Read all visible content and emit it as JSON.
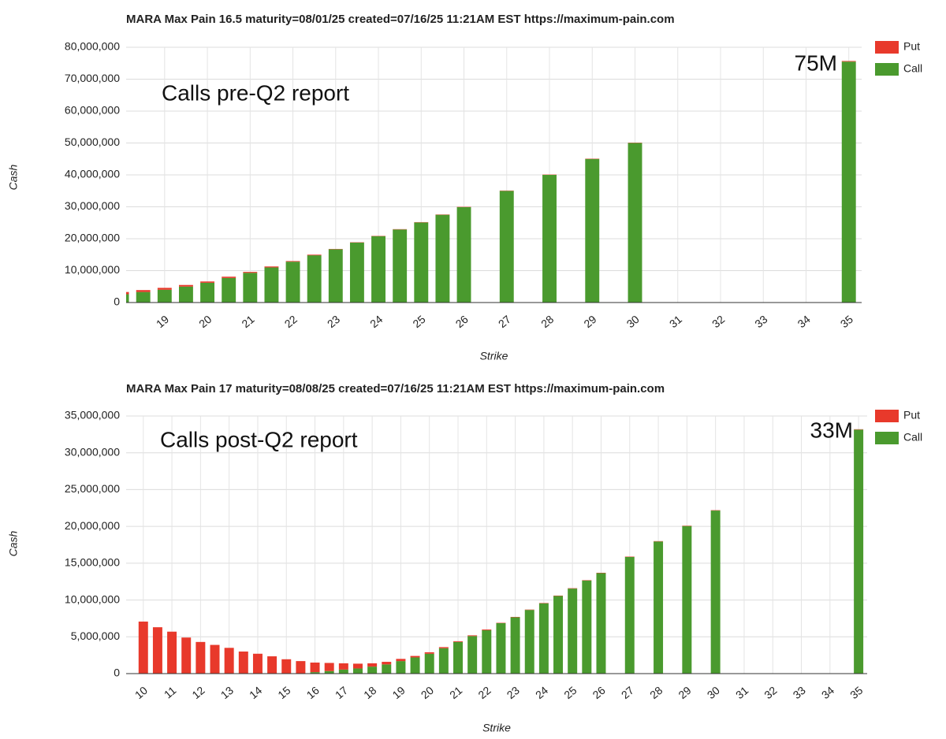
{
  "chart_data": [
    {
      "type": "bar",
      "stacked": true,
      "title": "MARA Max Pain 16.5 maturity=08/01/25 created=07/16/25 11:21AM EST https://maximum-pain.com",
      "x_label": "Strike",
      "y_label": "Cash",
      "annotations": [
        "Calls pre-Q2 report",
        "75M"
      ],
      "x": [
        18,
        18.5,
        19,
        19.5,
        20,
        20.5,
        21,
        21.5,
        22,
        22.5,
        23,
        23.5,
        24,
        24.5,
        25,
        25.5,
        26,
        27,
        28,
        29,
        30,
        35
      ],
      "series": [
        {
          "name": "Put",
          "color": "#e8392b",
          "values": [
            700000,
            600000,
            600000,
            500000,
            400000,
            400000,
            300000,
            300000,
            200000,
            200000,
            100000,
            100000,
            100000,
            100000,
            100000,
            100000,
            100000,
            100000,
            100000,
            100000,
            100000,
            200000
          ]
        },
        {
          "name": "Call",
          "color": "#4a9a2e",
          "values": [
            2600000,
            3300000,
            4000000,
            5000000,
            6200000,
            7700000,
            9300000,
            11000000,
            12800000,
            14800000,
            16700000,
            18800000,
            20800000,
            22900000,
            25100000,
            27500000,
            29900000,
            35000000,
            40000000,
            45000000,
            50000000,
            75500000
          ]
        }
      ],
      "xlim": [
        18.1,
        35.3
      ],
      "xticks": [
        19,
        20,
        21,
        22,
        23,
        24,
        25,
        26,
        27,
        28,
        29,
        30,
        31,
        32,
        33,
        34,
        35
      ],
      "ylim": [
        0,
        80000000
      ],
      "yticks": [
        0,
        {
          "value": 10000000,
          "label": "10,000,000"
        },
        {
          "value": 20000000,
          "label": "20,000,000"
        },
        {
          "value": 30000000,
          "label": "30,000,000"
        },
        {
          "value": 40000000,
          "label": "40,000,000"
        },
        {
          "value": 50000000,
          "label": "50,000,000"
        },
        {
          "value": 60000000,
          "label": "60,000,000"
        },
        {
          "value": 70000000,
          "label": "70,000,000"
        },
        {
          "value": 80000000,
          "label": "80,000,000"
        }
      ],
      "grid": true,
      "legend": "right"
    },
    {
      "type": "bar",
      "stacked": true,
      "title": "MARA Max Pain 17 maturity=08/08/25 created=07/16/25 11:21AM EST https://maximum-pain.com",
      "x_label": "Strike",
      "y_label": "Cash",
      "annotations": [
        "Calls post-Q2 report",
        "33M"
      ],
      "x": [
        10,
        10.5,
        11,
        11.5,
        12,
        12.5,
        13,
        13.5,
        14,
        14.5,
        15,
        15.5,
        16,
        16.5,
        17,
        17.5,
        18,
        18.5,
        19,
        19.5,
        20,
        20.5,
        21,
        21.5,
        22,
        22.5,
        23,
        23.5,
        24,
        24.5,
        25,
        25.5,
        26,
        27,
        28,
        29,
        30,
        35
      ],
      "series": [
        {
          "name": "Put",
          "color": "#e8392b",
          "values": [
            7070000,
            6300000,
            5700000,
            4900000,
            4300000,
            3900000,
            3500000,
            3000000,
            2700000,
            2350000,
            1950000,
            1650000,
            1300000,
            1100000,
            850000,
            650000,
            450000,
            350000,
            300000,
            200000,
            200000,
            150000,
            100000,
            100000,
            100000,
            50000,
            50000,
            50000,
            50000,
            50000,
            50000,
            50000,
            50000,
            50000,
            50000,
            50000,
            50000,
            50000
          ]
        },
        {
          "name": "Call",
          "color": "#4a9a2e",
          "values": [
            0,
            0,
            0,
            0,
            0,
            0,
            0,
            0,
            0,
            0,
            0,
            50000,
            200000,
            350000,
            550000,
            700000,
            950000,
            1250000,
            1700000,
            2200000,
            2700000,
            3450000,
            4300000,
            5100000,
            5900000,
            6850000,
            7650000,
            8650000,
            9550000,
            10550000,
            11550000,
            12650000,
            13650000,
            15850000,
            17950000,
            20050000,
            22150000,
            33150000
          ]
        }
      ],
      "xlim": [
        9.4,
        35.3
      ],
      "xticks": [
        10,
        11,
        12,
        13,
        14,
        15,
        16,
        17,
        18,
        19,
        20,
        21,
        22,
        23,
        24,
        25,
        26,
        27,
        28,
        29,
        30,
        31,
        32,
        33,
        34,
        35
      ],
      "ylim": [
        0,
        35000000
      ],
      "yticks": [
        0,
        {
          "value": 5000000,
          "label": "5,000,000"
        },
        {
          "value": 10000000,
          "label": "10,000,000"
        },
        {
          "value": 15000000,
          "label": "15,000,000"
        },
        {
          "value": 20000000,
          "label": "20,000,000"
        },
        {
          "value": 25000000,
          "label": "25,000,000"
        },
        {
          "value": 30000000,
          "label": "30,000,000"
        },
        {
          "value": 35000000,
          "label": "35,000,000"
        }
      ],
      "grid": true,
      "legend": "right"
    }
  ]
}
